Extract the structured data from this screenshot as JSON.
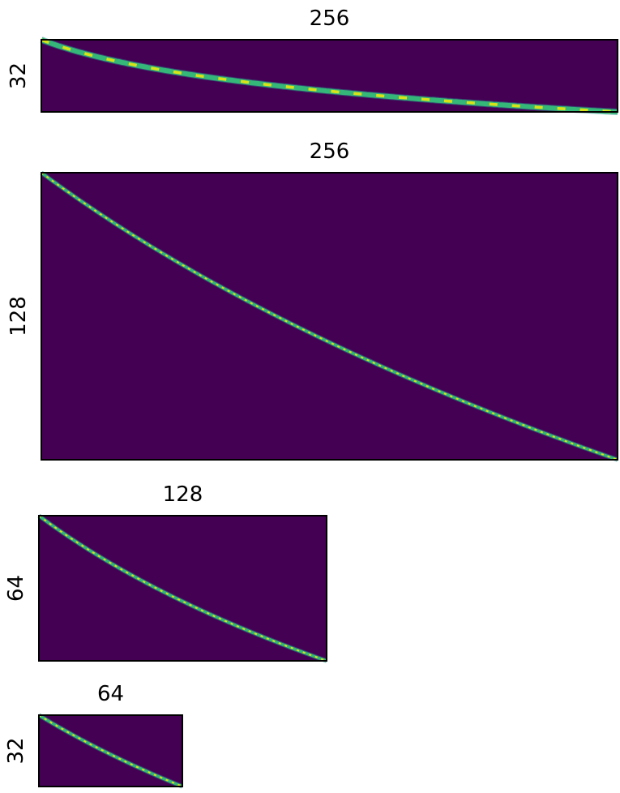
{
  "chart_data": [
    {
      "type": "heatmap",
      "title": "256",
      "ylabel": "32",
      "cols": 256,
      "rows": 32,
      "colormap": "viridis",
      "background": "#440154"
    },
    {
      "type": "heatmap",
      "title": "256",
      "ylabel": "128",
      "cols": 256,
      "rows": 128,
      "colormap": "viridis",
      "background": "#440154"
    },
    {
      "type": "heatmap",
      "title": "128",
      "ylabel": "64",
      "cols": 128,
      "rows": 64,
      "colormap": "viridis",
      "background": "#440154"
    },
    {
      "type": "heatmap",
      "title": "64",
      "ylabel": "32",
      "cols": 64,
      "rows": 32,
      "colormap": "viridis",
      "background": "#440154"
    }
  ]
}
